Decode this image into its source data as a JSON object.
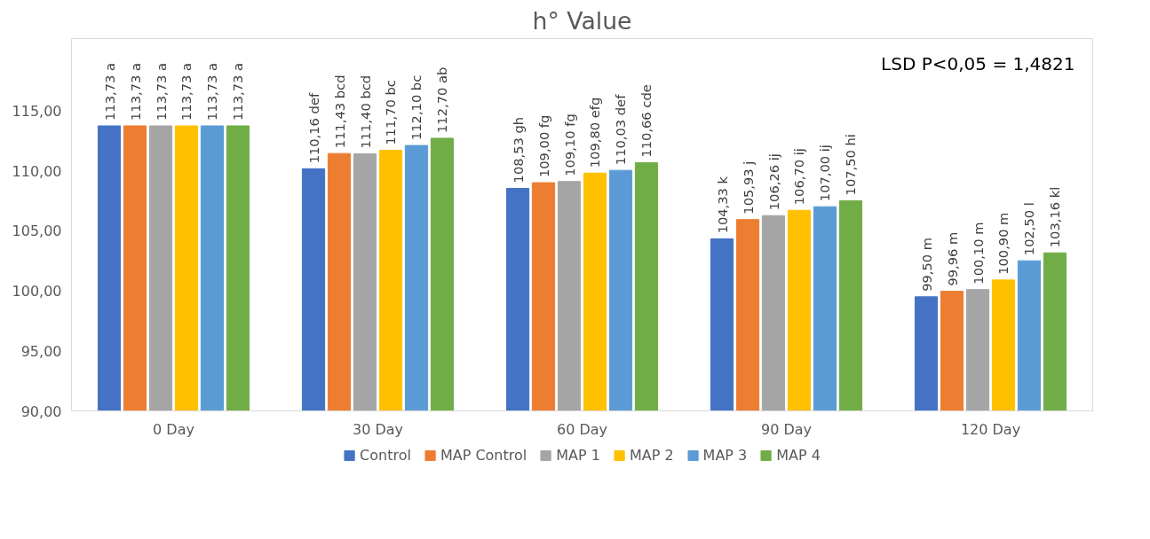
{
  "chart_data": {
    "type": "bar",
    "title": "h° Value",
    "categories": [
      "0 Day",
      "30 Day",
      "60 Day",
      "90 Day",
      "120 Day"
    ],
    "ylim": [
      90,
      121
    ],
    "yticks": [
      {
        "value": 90,
        "label": "90,00"
      },
      {
        "value": 95,
        "label": "95,00"
      },
      {
        "value": 100,
        "label": "100,00"
      },
      {
        "value": 105,
        "label": "105,00"
      },
      {
        "value": 110,
        "label": "110,00"
      },
      {
        "value": 115,
        "label": "115,00"
      }
    ],
    "legend": "bottom",
    "annotations": [
      "LSD P<0,05 = 1,4821"
    ],
    "series": [
      {
        "name": "Control",
        "color": "#4472c4",
        "values": [
          113.73,
          110.16,
          108.53,
          104.33,
          99.5
        ],
        "value_labels": [
          "113,73 a",
          "110,16 def",
          "108,53 gh",
          "104,33 k",
          "99,50 m"
        ]
      },
      {
        "name": "MAP Control",
        "color": "#ed7d31",
        "values": [
          113.73,
          111.43,
          109.0,
          105.93,
          99.96
        ],
        "value_labels": [
          "113,73 a",
          "111,43 bcd",
          "109,00 fg",
          "105,93 j",
          "99,96 m"
        ]
      },
      {
        "name": "MAP 1",
        "color": "#a5a5a5",
        "values": [
          113.73,
          111.4,
          109.1,
          106.26,
          100.1
        ],
        "value_labels": [
          "113,73 a",
          "111,40 bcd",
          "109,10 fg",
          "106,26 ij",
          "100,10 m"
        ]
      },
      {
        "name": "MAP 2",
        "color": "#ffc000",
        "values": [
          113.73,
          111.7,
          109.8,
          106.7,
          100.9
        ],
        "value_labels": [
          "113,73 a",
          "111,70 bc",
          "109,80 efg",
          "106,70 ij",
          "100,90 m"
        ]
      },
      {
        "name": "MAP 3",
        "color": "#5b9bd5",
        "values": [
          113.73,
          112.1,
          110.03,
          107.0,
          102.5
        ],
        "value_labels": [
          "113,73 a",
          "112,10 bc",
          "110,03 def",
          "107,00 ij",
          "102,50 l"
        ]
      },
      {
        "name": "MAP 4",
        "color": "#70ad47",
        "values": [
          113.73,
          112.7,
          110.66,
          107.5,
          103.16
        ],
        "value_labels": [
          "113,73 a",
          "112,70 ab",
          "110,66 cde",
          "107,50 hi",
          "103,16 kl"
        ]
      }
    ]
  }
}
